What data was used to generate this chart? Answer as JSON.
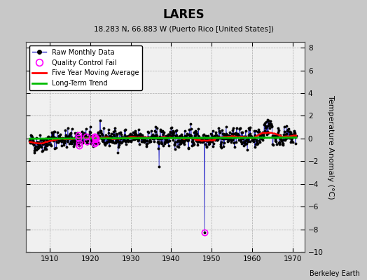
{
  "title": "LARES",
  "subtitle": "18.283 N, 66.883 W (Puerto Rico [United States])",
  "ylabel": "Temperature Anomaly (°C)",
  "credit": "Berkeley Earth",
  "xlim": [
    1904,
    1973
  ],
  "ylim": [
    -10,
    8.5
  ],
  "yticks": [
    -10,
    -8,
    -6,
    -4,
    -2,
    0,
    2,
    4,
    6,
    8
  ],
  "xticks": [
    1910,
    1920,
    1930,
    1940,
    1950,
    1960,
    1970
  ],
  "bg_color": "#c8c8c8",
  "plot_bg": "#f0f0f0",
  "raw_color": "#3333cc",
  "raw_dot_color": "#000000",
  "qc_color": "#ff00ff",
  "ma_color": "#ff0000",
  "trend_color": "#00bb00",
  "seed": 42,
  "years_start": 1905,
  "years_end": 1971
}
